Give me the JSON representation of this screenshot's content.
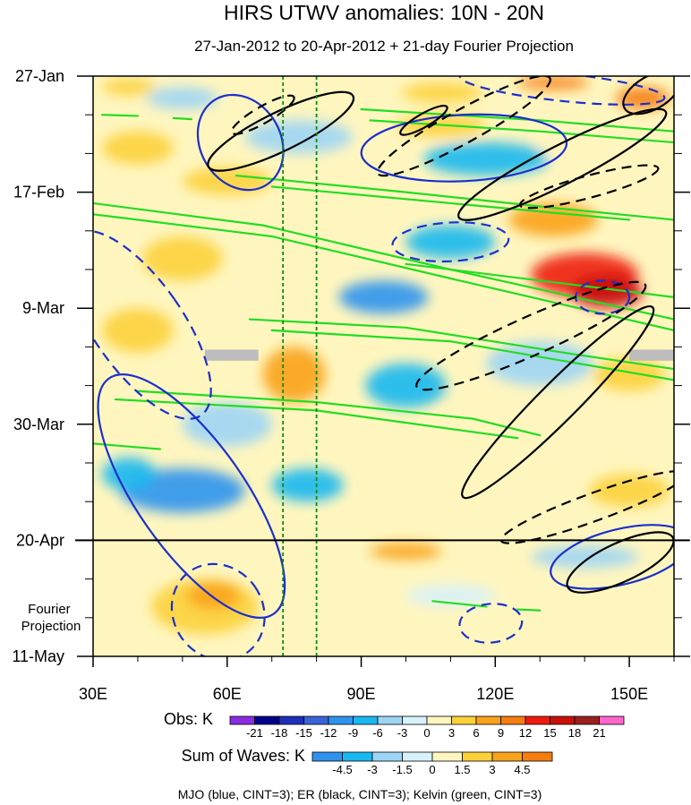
{
  "chart_data": {
    "type": "heatmap",
    "title": "HIRS UTWV anomalies: 10N - 20N",
    "subtitle": "27-Jan-2012 to 20-Apr-2012 + 21-day Fourier Projection",
    "xlabel": "",
    "ylabel": "",
    "x_ticks": [
      "30E",
      "60E",
      "90E",
      "120E",
      "150E"
    ],
    "x_tick_values": [
      30,
      60,
      90,
      120,
      150
    ],
    "xlim": [
      30,
      160
    ],
    "y_ticks": [
      "27-Jan",
      "17-Feb",
      "9-Mar",
      "30-Mar",
      "20-Apr",
      "11-May"
    ],
    "y_tick_days": [
      0,
      21,
      42,
      63,
      84,
      105
    ],
    "ylim_days": [
      0,
      105
    ],
    "projection_label": "Fourier\nProjection",
    "projection_start_day": 84,
    "reference_longitudes": [
      72.5,
      80
    ],
    "obs_legend": {
      "label": "Obs: K",
      "ticks": [
        "-21",
        "-18",
        "-15",
        "-12",
        "-9",
        "-6",
        "-3",
        "0",
        "3",
        "6",
        "9",
        "12",
        "15",
        "18",
        "21"
      ],
      "colors": [
        "#8a2be2",
        "#00008b",
        "#1e2fb8",
        "#3a64d8",
        "#2e93ee",
        "#1ab8f0",
        "#9dd5f5",
        "#d7f2fb",
        "#fff6bf",
        "#fcd13a",
        "#f9a21b",
        "#f67d10",
        "#ee1c10",
        "#c8100b",
        "#9a1f1f",
        "#ff66cc"
      ]
    },
    "waves_legend": {
      "label": "Sum of Waves: K",
      "ticks": [
        "-4.5",
        "-3",
        "-1.5",
        "0",
        "1.5",
        "3",
        "4.5"
      ],
      "colors": [
        "#2e93ee",
        "#1ab8f0",
        "#9dd5f5",
        "#d7f2fb",
        "#fff6bf",
        "#fcd13a",
        "#f9a21b",
        "#f67d10"
      ]
    },
    "footer": "MJO (blue, CINT=3); ER (black, CINT=3); Kelvin (green, CINT=3)",
    "colors": {
      "mjo": "#1c2fcc",
      "er": "#000000",
      "kelvin": "#22dd22",
      "reference_line": "#118811"
    },
    "anomaly_patches": [
      {
        "lon": 38,
        "day": 2,
        "rx": 6,
        "ry": 1.5,
        "value": 4
      },
      {
        "lon": 50,
        "day": 4,
        "rx": 8,
        "ry": 2,
        "value": -4
      },
      {
        "lon": 108,
        "day": 3,
        "rx": 9,
        "ry": 1.8,
        "value": 5
      },
      {
        "lon": 133,
        "day": 1.2,
        "rx": 8,
        "ry": 1.2,
        "value": 11
      },
      {
        "lon": 153,
        "day": 4,
        "rx": 6,
        "ry": 2,
        "value": 10
      },
      {
        "lon": 76,
        "day": 11,
        "rx": 12,
        "ry": 3,
        "value": -5
      },
      {
        "lon": 118,
        "day": 15,
        "rx": 14,
        "ry": 3,
        "value": -8
      },
      {
        "lon": 40,
        "day": 13,
        "rx": 8,
        "ry": 3,
        "value": 5
      },
      {
        "lon": 60,
        "day": 19,
        "rx": 10,
        "ry": 2.5,
        "value": 6
      },
      {
        "lon": 108,
        "day": 9,
        "rx": 10,
        "ry": 2,
        "value": 4
      },
      {
        "lon": 140,
        "day": 12,
        "rx": 10,
        "ry": 3,
        "value": 3
      },
      {
        "lon": 133,
        "day": 26,
        "rx": 10,
        "ry": 3,
        "value": 7
      },
      {
        "lon": 110,
        "day": 30,
        "rx": 10,
        "ry": 3,
        "value": -6
      },
      {
        "lon": 50,
        "day": 33,
        "rx": 9,
        "ry": 4,
        "value": 5
      },
      {
        "lon": 140,
        "day": 36,
        "rx": 12,
        "ry": 4,
        "value": 13
      },
      {
        "lon": 145,
        "day": 39,
        "rx": 8,
        "ry": 3,
        "value": 16
      },
      {
        "lon": 95,
        "day": 40,
        "rx": 10,
        "ry": 3,
        "value": -9
      },
      {
        "lon": 40,
        "day": 46,
        "rx": 8,
        "ry": 4,
        "value": 5
      },
      {
        "lon": 75,
        "day": 54,
        "rx": 7,
        "ry": 5,
        "value": 9
      },
      {
        "lon": 100,
        "day": 56,
        "rx": 9,
        "ry": 4,
        "value": -6
      },
      {
        "lon": 130,
        "day": 52,
        "rx": 12,
        "ry": 4,
        "value": -5
      },
      {
        "lon": 150,
        "day": 54,
        "rx": 8,
        "ry": 3,
        "value": 6
      },
      {
        "lon": 60,
        "day": 63,
        "rx": 10,
        "ry": 4,
        "value": -4
      },
      {
        "lon": 115,
        "day": 64,
        "rx": 10,
        "ry": 3,
        "value": 3
      },
      {
        "lon": 50,
        "day": 75,
        "rx": 14,
        "ry": 4,
        "value": -10
      },
      {
        "lon": 38,
        "day": 72,
        "rx": 6,
        "ry": 3,
        "value": -7
      },
      {
        "lon": 78,
        "day": 74,
        "rx": 8,
        "ry": 3,
        "value": -6
      },
      {
        "lon": 125,
        "day": 72,
        "rx": 10,
        "ry": 3,
        "value": 3
      },
      {
        "lon": 150,
        "day": 75,
        "rx": 9,
        "ry": 3,
        "value": 5
      },
      {
        "lon": 100,
        "day": 86,
        "rx": 8,
        "ry": 1.5,
        "value": 7
      },
      {
        "lon": 140,
        "day": 87,
        "rx": 12,
        "ry": 2,
        "value": -4
      },
      {
        "lon": 55,
        "day": 96,
        "rx": 12,
        "ry": 5,
        "value": 5
      },
      {
        "lon": 57,
        "day": 94,
        "rx": 6,
        "ry": 2.5,
        "value": 7
      },
      {
        "lon": 110,
        "day": 94,
        "rx": 10,
        "ry": 2,
        "value": -2
      },
      {
        "lon": 125,
        "day": 99,
        "rx": 8,
        "ry": 2,
        "value": 3
      }
    ],
    "missing_patches": [
      {
        "lon_range": [
          55,
          67
        ],
        "day_range": [
          49.5,
          51.5
        ]
      },
      {
        "lon_range": [
          150,
          160
        ],
        "day_range": [
          49.5,
          51.5
        ]
      }
    ],
    "mjo_contours": [
      {
        "center_lon": 63,
        "center_day": 12,
        "rx": 9,
        "ry": 9,
        "angle": -30,
        "dashed": false
      },
      {
        "center_lon": 113,
        "center_day": 13,
        "rx": 23,
        "ry": 6,
        "angle": -3,
        "dashed": false
      },
      {
        "center_lon": 40,
        "center_day": 45,
        "rx": 10,
        "ry": 20,
        "angle": -35,
        "dashed": true
      },
      {
        "center_lon": 52,
        "center_day": 76,
        "rx": 12,
        "ry": 26,
        "angle": -35,
        "dashed": false
      },
      {
        "center_lon": 58,
        "center_day": 97,
        "rx": 10,
        "ry": 9,
        "angle": -35,
        "dashed": true
      },
      {
        "center_lon": 119,
        "center_day": 99,
        "rx": 7,
        "ry": 3.5,
        "angle": -5,
        "dashed": true
      },
      {
        "center_lon": 144,
        "center_day": 40,
        "rx": 6,
        "ry": 3,
        "angle": 0,
        "dashed": true
      },
      {
        "center_lon": 135,
        "center_day": 2,
        "rx": 23,
        "ry": 2.5,
        "angle": 6,
        "dashed": true
      },
      {
        "center_lon": 148,
        "center_day": 87,
        "rx": 16,
        "ry": 5,
        "angle": -14,
        "dashed": false
      },
      {
        "center_lon": 110,
        "center_day": 30,
        "rx": 13,
        "ry": 3.5,
        "angle": -3,
        "dashed": true
      }
    ],
    "er_contours": [
      {
        "center_lon": 72,
        "center_day": 10,
        "rx": 18,
        "ry": 3.5,
        "angle": -26,
        "dashed": false
      },
      {
        "center_lon": 68,
        "center_day": 7,
        "rx": 8,
        "ry": 1.5,
        "angle": -30,
        "dashed": true
      },
      {
        "center_lon": 135,
        "center_day": 16,
        "rx": 26,
        "ry": 3.5,
        "angle": -27,
        "dashed": false
      },
      {
        "center_lon": 113,
        "center_day": 9,
        "rx": 22,
        "ry": 3,
        "angle": -29,
        "dashed": true
      },
      {
        "center_lon": 141,
        "center_day": 20,
        "rx": 16,
        "ry": 2,
        "angle": -15,
        "dashed": true
      },
      {
        "center_lon": 128,
        "center_day": 47,
        "rx": 28,
        "ry": 3.5,
        "angle": -24,
        "dashed": true
      },
      {
        "center_lon": 134,
        "center_day": 59,
        "rx": 30,
        "ry": 3.5,
        "angle": -45,
        "dashed": false
      },
      {
        "center_lon": 142,
        "center_day": 78,
        "rx": 22,
        "ry": 2.5,
        "angle": -20,
        "dashed": true
      },
      {
        "center_lon": 148,
        "center_day": 88,
        "rx": 13,
        "ry": 3.5,
        "angle": -25,
        "dashed": false
      },
      {
        "center_lon": 155,
        "center_day": 3,
        "rx": 7,
        "ry": 3,
        "angle": -30,
        "dashed": false
      },
      {
        "center_lon": 104,
        "center_day": 8,
        "rx": 6,
        "ry": 1.2,
        "angle": -30,
        "dashed": false
      }
    ],
    "kelvin_contours": [
      {
        "points": [
          [
            30,
            23
          ],
          [
            68,
            27
          ],
          [
            110,
            35
          ],
          [
            160,
            44
          ]
        ],
        "width": 2.2
      },
      {
        "points": [
          [
            30,
            25
          ],
          [
            70,
            29
          ],
          [
            112,
            37
          ],
          [
            160,
            46
          ]
        ],
        "width": 2.2
      },
      {
        "points": [
          [
            62,
            18
          ],
          [
            100,
            21
          ],
          [
            135,
            24
          ],
          [
            160,
            26
          ]
        ],
        "width": 2.2
      },
      {
        "points": [
          [
            70,
            20
          ],
          [
            110,
            23
          ],
          [
            150,
            26
          ]
        ],
        "width": 2.2
      },
      {
        "points": [
          [
            90,
            6
          ],
          [
            130,
            8
          ],
          [
            160,
            10
          ]
        ],
        "width": 2.2
      },
      {
        "points": [
          [
            92,
            8
          ],
          [
            130,
            10
          ],
          [
            160,
            12
          ]
        ],
        "width": 2.2
      },
      {
        "points": [
          [
            30,
            66.5
          ],
          [
            45,
            67.5
          ]
        ],
        "width": 2.2
      },
      {
        "points": [
          [
            32,
            7
          ],
          [
            40,
            7.2
          ]
        ],
        "width": 2.2
      },
      {
        "points": [
          [
            48,
            7.6
          ],
          [
            52,
            7.8
          ]
        ],
        "width": 2.2
      },
      {
        "points": [
          [
            65,
            44
          ],
          [
            100,
            45.5
          ],
          [
            135,
            50
          ],
          [
            160,
            53
          ]
        ],
        "width": 2.2
      },
      {
        "points": [
          [
            70,
            46
          ],
          [
            110,
            48
          ],
          [
            160,
            55
          ]
        ],
        "width": 2.2
      },
      {
        "points": [
          [
            100,
            34
          ],
          [
            130,
            37
          ],
          [
            160,
            40
          ]
        ],
        "width": 2.2
      },
      {
        "points": [
          [
            40,
            57
          ],
          [
            80,
            59
          ],
          [
            115,
            62
          ],
          [
            130,
            65
          ]
        ],
        "width": 2.2
      },
      {
        "points": [
          [
            35,
            58.5
          ],
          [
            80,
            60.5
          ],
          [
            125,
            65.5
          ]
        ],
        "width": 2.2
      },
      {
        "points": [
          [
            106,
            95
          ],
          [
            118,
            96
          ]
        ],
        "width": 2.2
      },
      {
        "points": [
          [
            125,
            96.5
          ],
          [
            130,
            96.7
          ]
        ],
        "width": 2.2
      }
    ]
  }
}
